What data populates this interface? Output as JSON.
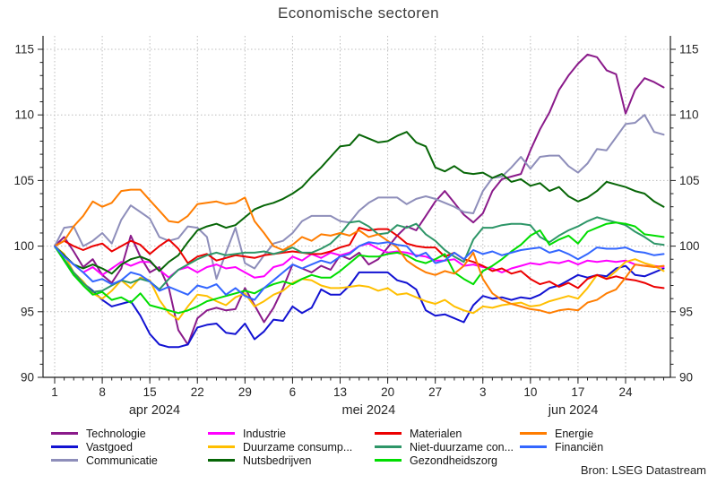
{
  "title": "Economische sectoren",
  "source": "Bron: LSEG Datastream",
  "chart_data": {
    "type": "line",
    "title": "Economische sectoren",
    "grid": true,
    "legend_position": "bottom",
    "y_axis": {
      "min": 90,
      "max": 115,
      "major_step": 5,
      "minor_step": 1,
      "labels": [
        "90",
        "95",
        "100",
        "105",
        "110",
        "115"
      ],
      "sides": "both"
    },
    "x_axis": {
      "n_points": 65,
      "day_tick_labels": [
        {
          "i": 0,
          "label": "1"
        },
        {
          "i": 5,
          "label": "8"
        },
        {
          "i": 10,
          "label": "15"
        },
        {
          "i": 15,
          "label": "22"
        },
        {
          "i": 20,
          "label": "29"
        },
        {
          "i": 25,
          "label": "6"
        },
        {
          "i": 30,
          "label": "13"
        },
        {
          "i": 35,
          "label": "20"
        },
        {
          "i": 40,
          "label": "27"
        },
        {
          "i": 45,
          "label": "3"
        },
        {
          "i": 50,
          "label": "10"
        },
        {
          "i": 55,
          "label": "17"
        },
        {
          "i": 60,
          "label": "24"
        }
      ],
      "month_labels": [
        {
          "i": 10.5,
          "label": "apr 2024"
        },
        {
          "i": 33,
          "label": "mei 2024"
        },
        {
          "i": 54.5,
          "label": "jun 2024"
        }
      ]
    },
    "series": [
      {
        "name": "Technologie",
        "color": "#8a1a8a",
        "values": [
          100,
          100.7,
          99.6,
          98.4,
          99,
          97.8,
          97.2,
          98.3,
          100.8,
          99.2,
          98,
          98.4,
          96.8,
          93.6,
          92.5,
          94.5,
          95.1,
          95.3,
          95.1,
          95.2,
          96.8,
          95.5,
          94.2,
          95.3,
          96.8,
          98.6,
          98.3,
          98,
          98.5,
          98.2,
          99.3,
          99,
          99.5,
          98.6,
          99,
          99.9,
          100.8,
          101.5,
          101.2,
          102.3,
          103.4,
          104.2,
          103.3,
          102.4,
          101.8,
          102.5,
          104.2,
          105.1,
          105.3,
          105.5,
          107.3,
          108.9,
          110.2,
          111.9,
          113,
          113.9,
          114.6,
          114.4,
          113.4,
          113.1,
          110.1,
          111.9,
          112.8,
          112.5,
          112.1
        ]
      },
      {
        "name": "Vastgoed",
        "color": "#1212d2",
        "values": [
          100,
          98.9,
          97.8,
          97.2,
          96.6,
          95.9,
          95.4,
          95.6,
          95.8,
          94.7,
          93.3,
          92.5,
          92.3,
          92.3,
          92.5,
          93.8,
          94,
          94.1,
          93.4,
          93.3,
          94.1,
          92.9,
          93.5,
          94.4,
          94.3,
          95.4,
          94.9,
          95.3,
          96.7,
          96.3,
          96.3,
          97,
          98,
          98,
          98,
          98,
          97.4,
          97.2,
          96.7,
          95.1,
          94.7,
          94.8,
          94.5,
          94.2,
          95.5,
          96.2,
          96,
          96.1,
          95.9,
          96.1,
          96,
          96.3,
          96.8,
          97,
          97.4,
          97.8,
          97.6,
          97.8,
          97.7,
          98.3,
          98.5,
          97.8,
          97.7,
          98,
          98.3
        ]
      },
      {
        "name": "Communicatie",
        "color": "#8e8eba",
        "values": [
          100,
          101.4,
          101.5,
          100,
          100.4,
          101,
          100.2,
          102,
          103.1,
          102.6,
          102.1,
          100.7,
          100.4,
          100.6,
          101.5,
          101.4,
          100.7,
          97.5,
          99.5,
          101.4,
          98.7,
          98.3,
          99.3,
          100.2,
          100.4,
          101,
          101.9,
          102.3,
          102.3,
          102.3,
          101.9,
          101.8,
          102.7,
          103.3,
          103.7,
          103.7,
          103.7,
          103.2,
          103.6,
          103.8,
          103.6,
          103.3,
          103,
          102.6,
          102.5,
          104.2,
          105.2,
          105.3,
          106,
          106.8,
          105.9,
          106.8,
          106.9,
          106.9,
          106.1,
          105.6,
          106.3,
          107.4,
          107.3,
          108.3,
          109.3,
          109.4,
          110,
          108.7,
          108.5
        ]
      },
      {
        "name": "Industrie",
        "color": "#ff00ff",
        "values": [
          100,
          99.3,
          98.6,
          98,
          98.4,
          97.8,
          98.3,
          98.8,
          98.5,
          98.8,
          98.8,
          98.2,
          97.6,
          98.2,
          98.4,
          98,
          98.4,
          98.6,
          98.3,
          98.4,
          98,
          97.6,
          97.7,
          98.4,
          98.6,
          99.2,
          98.9,
          99.4,
          99.1,
          99.5,
          99.3,
          99.5,
          100,
          100.2,
          99.8,
          99.5,
          99.6,
          99.5,
          99.3,
          99.2,
          98.9,
          98.9,
          99,
          98.5,
          98.6,
          98.4,
          98.3,
          98,
          98.3,
          98.5,
          98.7,
          98.6,
          98.8,
          98.7,
          98.9,
          98.6,
          98.9,
          98.8,
          98.9,
          98.8,
          98.9,
          98.6,
          98.5,
          98.5,
          98.4
        ]
      },
      {
        "name": "Duurzame consump...",
        "color": "#ffbf00",
        "values": [
          100,
          99.4,
          98,
          97.3,
          96.4,
          96,
          96.6,
          97.4,
          96.8,
          97.6,
          97.4,
          95.9,
          94.9,
          94.4,
          95.4,
          96.3,
          96.2,
          95.8,
          95.5,
          96.1,
          96.4,
          95.4,
          95.8,
          96.3,
          96.6,
          97.2,
          97.5,
          97.4,
          97,
          96.8,
          96.8,
          96.9,
          97,
          96.9,
          96.6,
          96.8,
          96.3,
          96.4,
          96.1,
          95.8,
          95.6,
          95.9,
          95.4,
          95.1,
          94.9,
          95.4,
          95.3,
          95.5,
          95.6,
          95.7,
          95.4,
          95.5,
          95.8,
          96,
          96.2,
          96,
          96.8,
          97.8,
          97.5,
          98.1,
          98.8,
          99,
          98.7,
          98.5,
          98.1
        ]
      },
      {
        "name": "Nutsbedrijven",
        "color": "#076607",
        "values": [
          100,
          99.3,
          98.6,
          98.3,
          98.6,
          98.3,
          97.9,
          98.6,
          99,
          99.2,
          98.9,
          98.1,
          98.8,
          99.3,
          100.3,
          101.2,
          101.5,
          101.7,
          101.4,
          101.6,
          102.2,
          102.8,
          103.1,
          103.3,
          103.6,
          104,
          104.5,
          105.3,
          106,
          106.8,
          107.6,
          107.7,
          108.5,
          108.2,
          107.9,
          108,
          108.4,
          108.7,
          107.9,
          107.6,
          106,
          105.7,
          106.1,
          105.6,
          105.5,
          105.6,
          105.2,
          105.5,
          104.9,
          105.1,
          104.6,
          104.8,
          104.2,
          104.5,
          103.8,
          103.4,
          103.7,
          104.2,
          104.9,
          104.7,
          104.5,
          104.2,
          104,
          103.4,
          103
        ]
      },
      {
        "name": "Materialen",
        "color": "#ec0000",
        "values": [
          100,
          100.4,
          100,
          99.7,
          100,
          100.2,
          99.6,
          100,
          100.4,
          100.1,
          99.4,
          100,
          100.5,
          99.8,
          98.7,
          99.2,
          99.4,
          98.9,
          99.1,
          99.3,
          99.2,
          99.1,
          99.3,
          99.4,
          99.5,
          99.6,
          99.5,
          99.4,
          99.4,
          99.6,
          99.9,
          100.1,
          101.4,
          101.2,
          101.3,
          101.3,
          100.8,
          100.2,
          100,
          99.9,
          99.9,
          99.2,
          99.5,
          99,
          98.8,
          98.5,
          98.1,
          98.3,
          97.9,
          98.1,
          97.5,
          97.1,
          97.3,
          96.9,
          97.2,
          96.8,
          97.5,
          97.8,
          97.5,
          97.7,
          97.5,
          97.4,
          97.2,
          96.9,
          96.8
        ]
      },
      {
        "name": "Niet-duurzame con...",
        "color": "#2e9668",
        "values": [
          100,
          99,
          98,
          97.2,
          96.5,
          96.6,
          97,
          97.4,
          97.2,
          97.5,
          97.3,
          96.7,
          97.5,
          98.2,
          98.6,
          99,
          99.3,
          99.5,
          99.3,
          99.4,
          99.5,
          99.5,
          99.6,
          99.4,
          99.6,
          99.9,
          99.5,
          99.5,
          99.8,
          100.2,
          100.9,
          101.8,
          101.9,
          101.5,
          100.9,
          101,
          101.6,
          101.4,
          101.7,
          100.9,
          100.4,
          99.7,
          99.2,
          98.8,
          100.5,
          101.4,
          101.4,
          101.6,
          101.7,
          101.7,
          101.6,
          100.7,
          100.3,
          100.8,
          101.2,
          101.5,
          101.9,
          102.2,
          102,
          101.8,
          101.6,
          101.1,
          100.7,
          100.2,
          100.1
        ]
      },
      {
        "name": "Gezondheidszorg",
        "color": "#00dd00",
        "values": [
          100,
          98.9,
          97.8,
          97,
          96.3,
          96.5,
          95.9,
          96.1,
          95.7,
          96.4,
          95.5,
          95.3,
          95.1,
          94.9,
          95.1,
          95.4,
          95.8,
          96,
          96.2,
          96.4,
          96.6,
          96.4,
          96.8,
          97.1,
          97.3,
          97.1,
          97.5,
          97.8,
          97.6,
          97.6,
          98.1,
          98.7,
          99.3,
          99.2,
          99.2,
          99.4,
          99.5,
          99.3,
          98.9,
          98.7,
          99,
          99.4,
          98,
          97.5,
          97.1,
          98.1,
          98.5,
          99,
          99.6,
          100.1,
          100.8,
          101.2,
          100.1,
          100.5,
          100.8,
          100.2,
          101.1,
          101.4,
          101.7,
          101.8,
          101.7,
          101.5,
          100.9,
          100.8,
          100.7
        ]
      },
      {
        "name": "Energie",
        "color": "#ff7d00",
        "values": [
          100,
          100.4,
          101.5,
          102.3,
          103.4,
          103,
          103.3,
          104.2,
          104.3,
          104.3,
          103.5,
          102.7,
          101.9,
          101.8,
          102.3,
          103.2,
          103.3,
          103.4,
          103.2,
          103.3,
          103.7,
          101.9,
          101,
          100,
          99.7,
          100.1,
          100.7,
          100.4,
          100.9,
          100.8,
          101,
          100.8,
          101.2,
          100.7,
          100.9,
          100.4,
          99.9,
          98.9,
          98.4,
          98,
          97.8,
          98.1,
          97.9,
          98.5,
          99.5,
          97.5,
          96.4,
          95.9,
          95.6,
          95.4,
          95.2,
          95.1,
          94.9,
          95.1,
          95.2,
          95.1,
          95.7,
          95.9,
          96.4,
          96.7,
          97.6,
          98.6,
          98.5,
          98.4,
          98.5
        ]
      },
      {
        "name": "Financiën",
        "color": "#3366ff",
        "values": [
          100,
          99.2,
          98.6,
          98,
          97.3,
          97.5,
          97.1,
          97.4,
          98,
          97.8,
          97.3,
          96.6,
          96.9,
          96.6,
          96.3,
          97,
          96.8,
          97.1,
          96.3,
          96.8,
          96.2,
          95.9,
          96.8,
          97.4,
          98,
          98.6,
          98.3,
          98.6,
          98.9,
          98.7,
          99.2,
          99.4,
          100,
          100.3,
          100.2,
          100.3,
          100.1,
          100,
          99.2,
          99.5,
          98.7,
          98.9,
          99.5,
          99,
          99.7,
          99.4,
          99.6,
          99.3,
          99.5,
          99.7,
          99.8,
          99.9,
          99.5,
          99.7,
          99.4,
          99,
          99.4,
          99.9,
          99.8,
          99.8,
          99.9,
          99.6,
          99.5,
          99.3,
          99.4
        ]
      }
    ],
    "legend_columns": [
      [
        0,
        1,
        2
      ],
      [
        3,
        4,
        5
      ],
      [
        6,
        7,
        8
      ],
      [
        9,
        10
      ]
    ],
    "legend_column_x": [
      57,
      232,
      418,
      580
    ]
  }
}
